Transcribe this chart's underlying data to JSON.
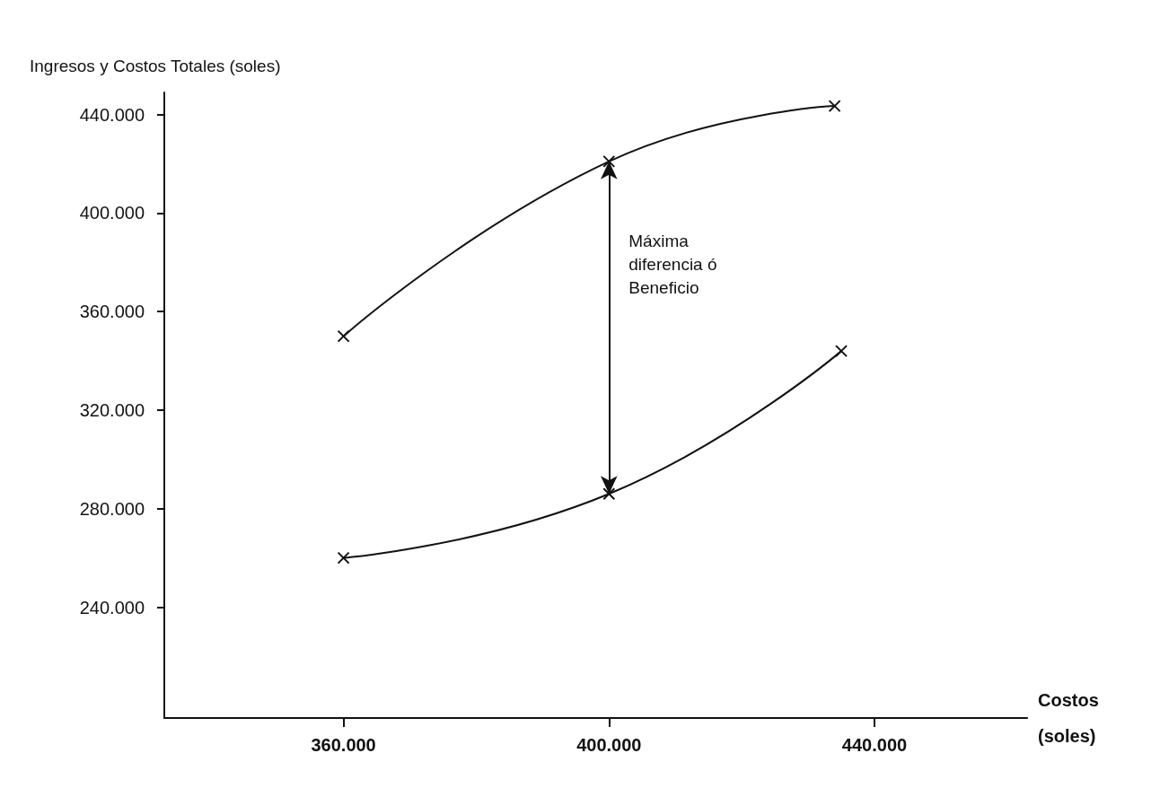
{
  "chart_data": {
    "type": "line",
    "xlabel": "Costos (soles)",
    "ylabel": "Ingresos y Costos Totales (soles)",
    "series": [
      {
        "color": "#111111",
        "x": [
          360000,
          400000,
          434000
        ],
        "values": [
          350000,
          421000,
          443500
        ]
      },
      {
        "color": "#111111",
        "x": [
          360000,
          400000,
          435000
        ],
        "values": [
          260000,
          286000,
          344000
        ]
      }
    ],
    "xlim": [
      333000,
      463000
    ],
    "ylim": [
      195000,
      449000
    ],
    "xticks": [
      {
        "value": 360000,
        "label": "360.000"
      },
      {
        "value": 400000,
        "label": "400.000"
      },
      {
        "value": 440000,
        "label": "440.000"
      }
    ],
    "yticks": [
      {
        "value": 240000,
        "label": "240.000"
      },
      {
        "value": 280000,
        "label": "280.000"
      },
      {
        "value": 320000,
        "label": "320.000"
      },
      {
        "value": 360000,
        "label": "360.000"
      },
      {
        "value": 400000,
        "label": "400.000"
      },
      {
        "value": 440000,
        "label": "440.000"
      }
    ],
    "annotations": [
      "Máxima diferencia ó Beneficio"
    ],
    "grid": false,
    "marker": "cross",
    "line_style": "solid"
  }
}
